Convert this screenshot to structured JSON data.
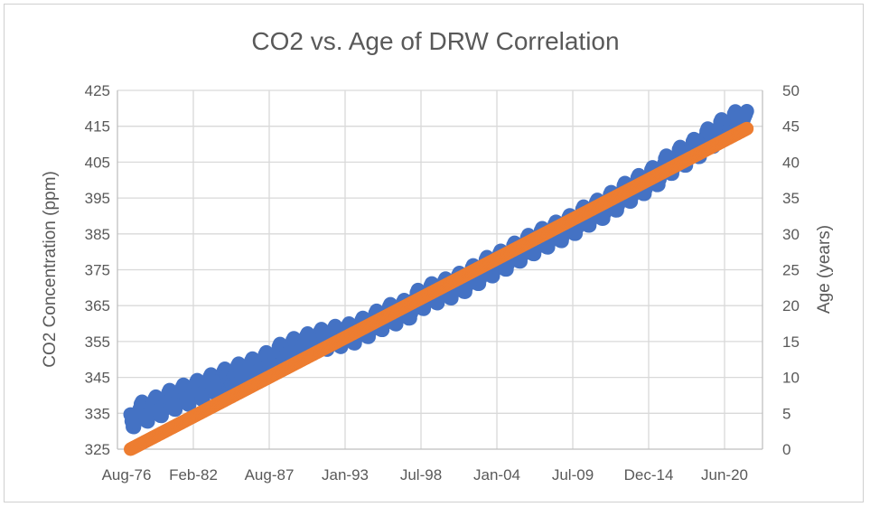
{
  "chart_data": {
    "type": "scatter",
    "title": "CO2 vs. Age of DRW Correlation",
    "ylabel": "CO2 Concentration (ppm)",
    "y2label": "Age (years)",
    "xlabel": "",
    "ylim": [
      325,
      425
    ],
    "y_ticks": [
      "325",
      "335",
      "345",
      "355",
      "365",
      "375",
      "385",
      "395",
      "405",
      "415",
      "425"
    ],
    "y2lim": [
      0,
      50
    ],
    "y2_ticks": [
      "0",
      "5",
      "10",
      "15",
      "20",
      "25",
      "30",
      "35",
      "40",
      "45",
      "50"
    ],
    "x_ticks": [
      "Aug-76",
      "Feb-82",
      "Aug-87",
      "Jan-93",
      "Jul-98",
      "Jan-04",
      "Jul-09",
      "Dec-14",
      "Jun-20"
    ],
    "x_range_years": [
      1976.6,
      2023.35
    ],
    "x_tick_step_years": 5.5,
    "grid": true,
    "colors": {
      "co2": "#4472C4",
      "age": "#ED7D31",
      "grid": "#d9d9d9",
      "text": "#595959"
    },
    "series": [
      {
        "name": "CO2 Concentration (ppm)",
        "axis": "left",
        "monthly_from": 1977.55,
        "monthly_to": 2022.25,
        "annual_mean_years_start": 1976,
        "annual_mean_ppm": [
          332.0,
          333.8,
          335.4,
          336.8,
          338.7,
          340.1,
          341.4,
          343.0,
          344.6,
          346.0,
          347.4,
          349.2,
          351.6,
          353.1,
          354.4,
          355.6,
          356.4,
          357.1,
          358.8,
          360.8,
          362.6,
          363.7,
          366.7,
          368.4,
          369.7,
          371.3,
          373.5,
          375.8,
          377.5,
          379.8,
          381.9,
          383.8,
          385.6,
          387.4,
          389.9,
          391.7,
          393.9,
          396.5,
          398.6,
          400.8,
          404.2,
          406.5,
          408.7,
          411.7,
          414.2,
          416.4,
          418.5
        ],
        "seasonal_offset_ppm_jan_to_dec": [
          0.0,
          0.6,
          1.3,
          2.5,
          3.0,
          2.3,
          0.8,
          -1.2,
          -2.9,
          -3.1,
          -1.9,
          -0.7
        ]
      },
      {
        "name": "Age (years)",
        "axis": "right",
        "monthly_from": 1977.55,
        "monthly_to": 2022.25,
        "age_start": 0,
        "age_end": 44.7
      }
    ]
  }
}
